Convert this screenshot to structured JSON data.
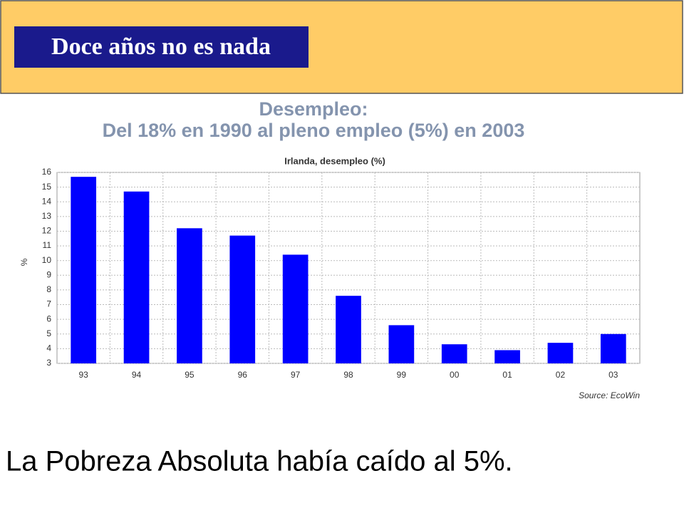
{
  "slide": {
    "header": "Doce años no es nada",
    "footer": "La Pobreza Absoluta había caído al 5%."
  },
  "chart_data": {
    "type": "bar",
    "title": "Desempleo:",
    "subtitle": "Del 18% en 1990 al pleno empleo (5%) en 2003",
    "chart_title": "Irlanda, desempleo (%)",
    "ylabel": "%",
    "source": "Source: EcoWin",
    "categories": [
      "93",
      "94",
      "95",
      "96",
      "97",
      "98",
      "99",
      "00",
      "01",
      "02",
      "03"
    ],
    "values": [
      15.7,
      14.7,
      12.2,
      11.7,
      10.4,
      7.6,
      5.6,
      4.3,
      3.9,
      4.4,
      5.0
    ],
    "color": "#0000ff",
    "ylim": [
      3,
      16
    ],
    "yticks": [
      3,
      4,
      5,
      6,
      7,
      8,
      9,
      10,
      11,
      12,
      13,
      14,
      15,
      16
    ],
    "grid": true
  }
}
